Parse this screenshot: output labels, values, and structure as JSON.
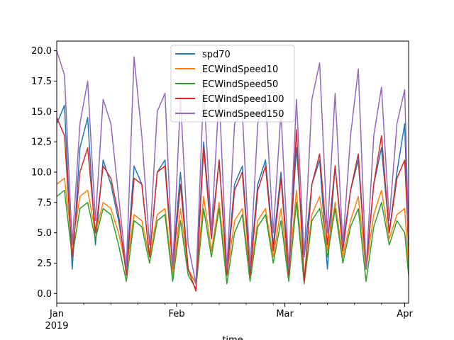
{
  "chart_data": {
    "type": "line",
    "xlabel": "time",
    "x_range": [
      "2019-01-01",
      "2019-04-02"
    ],
    "ylim": [
      -0.8,
      20.8
    ],
    "grid": false,
    "legend_position": "top-center",
    "y_ticks": [
      0.0,
      2.5,
      5.0,
      7.5,
      10.0,
      12.5,
      15.0,
      17.5,
      20.0
    ],
    "y_tick_labels": [
      "0.0",
      "2.5",
      "5.0",
      "7.5",
      "10.0",
      "12.5",
      "15.0",
      "17.5",
      "20.0"
    ],
    "x_ticks": [
      {
        "date": "2019-01-01",
        "label": "Jan",
        "sublabel": "2019"
      },
      {
        "date": "2019-02-01",
        "label": "Feb",
        "sublabel": ""
      },
      {
        "date": "2019-03-01",
        "label": "Mar",
        "sublabel": ""
      },
      {
        "date": "2019-04-01",
        "label": "Apr",
        "sublabel": ""
      }
    ],
    "x": [
      "2019-01-01",
      "2019-01-03",
      "2019-01-05",
      "2019-01-07",
      "2019-01-09",
      "2019-01-11",
      "2019-01-13",
      "2019-01-15",
      "2019-01-17",
      "2019-01-19",
      "2019-01-21",
      "2019-01-23",
      "2019-01-25",
      "2019-01-27",
      "2019-01-29",
      "2019-01-31",
      "2019-02-02",
      "2019-02-04",
      "2019-02-06",
      "2019-02-08",
      "2019-02-10",
      "2019-02-12",
      "2019-02-14",
      "2019-02-16",
      "2019-02-18",
      "2019-02-20",
      "2019-02-22",
      "2019-02-24",
      "2019-02-26",
      "2019-02-28",
      "2019-03-02",
      "2019-03-04",
      "2019-03-06",
      "2019-03-08",
      "2019-03-10",
      "2019-03-12",
      "2019-03-14",
      "2019-03-16",
      "2019-03-18",
      "2019-03-20",
      "2019-03-22",
      "2019-03-24",
      "2019-03-26",
      "2019-03-28",
      "2019-03-30",
      "2019-04-01",
      "2019-04-02"
    ],
    "series": [
      {
        "name": "spd70",
        "color": "#1f77b4",
        "values": [
          14.0,
          15.5,
          2.0,
          12.0,
          14.5,
          4.0,
          11.0,
          9.0,
          6.0,
          2.0,
          10.5,
          9.0,
          3.0,
          10.0,
          11.0,
          2.5,
          10.0,
          2.0,
          0.8,
          12.5,
          5.0,
          11.0,
          2.0,
          9.0,
          10.5,
          2.0,
          9.0,
          11.0,
          4.0,
          10.0,
          2.0,
          12.0,
          3.0,
          9.0,
          11.0,
          2.0,
          10.5,
          4.0,
          8.5,
          11.0,
          2.0,
          9.0,
          12.0,
          5.0,
          10.0,
          14.0,
          3.0
        ]
      },
      {
        "name": "ECWindSpeed10",
        "color": "#ff7f0e",
        "values": [
          9.0,
          9.5,
          4.0,
          8.0,
          8.5,
          5.0,
          7.5,
          7.0,
          5.0,
          2.0,
          6.5,
          6.0,
          3.0,
          6.5,
          7.0,
          1.5,
          7.0,
          2.0,
          0.8,
          8.0,
          3.5,
          7.5,
          1.5,
          6.0,
          7.0,
          1.5,
          6.0,
          7.0,
          3.0,
          7.0,
          1.5,
          8.5,
          1.0,
          6.5,
          8.0,
          3.5,
          7.5,
          3.0,
          6.0,
          8.0,
          2.0,
          6.5,
          8.5,
          4.5,
          6.5,
          7.0,
          2.0
        ]
      },
      {
        "name": "ECWindSpeed50",
        "color": "#2ca02c",
        "values": [
          8.0,
          8.5,
          3.0,
          7.0,
          7.5,
          4.5,
          7.0,
          6.5,
          4.0,
          1.0,
          6.0,
          5.5,
          2.5,
          6.0,
          6.5,
          1.0,
          6.0,
          1.5,
          0.4,
          7.0,
          3.0,
          7.0,
          0.8,
          5.0,
          6.5,
          1.0,
          5.5,
          6.5,
          2.5,
          6.0,
          1.0,
          7.5,
          0.8,
          6.0,
          7.0,
          3.0,
          7.0,
          2.5,
          5.5,
          7.0,
          1.0,
          5.5,
          7.5,
          4.0,
          6.0,
          5.0,
          1.5
        ]
      },
      {
        "name": "ECWindSpeed100",
        "color": "#d62728",
        "values": [
          14.5,
          13.0,
          3.0,
          10.0,
          12.0,
          5.0,
          10.5,
          9.5,
          6.5,
          1.5,
          9.5,
          9.0,
          3.0,
          10.0,
          10.5,
          2.0,
          9.0,
          2.0,
          0.2,
          12.0,
          4.5,
          11.0,
          1.5,
          8.5,
          10.0,
          1.5,
          8.5,
          10.5,
          3.5,
          9.5,
          1.5,
          13.5,
          1.0,
          9.0,
          11.5,
          4.0,
          10.5,
          3.5,
          8.5,
          11.5,
          2.0,
          9.0,
          13.0,
          5.0,
          9.5,
          11.0,
          4.0
        ]
      },
      {
        "name": "ECWindSpeed150",
        "color": "#9467bd",
        "values": [
          20.0,
          18.0,
          4.0,
          14.0,
          17.5,
          6.0,
          16.0,
          14.0,
          8.0,
          2.0,
          19.5,
          13.0,
          4.0,
          15.0,
          16.5,
          2.0,
          16.0,
          4.0,
          0.8,
          17.0,
          5.0,
          16.5,
          2.0,
          14.0,
          15.0,
          2.0,
          14.0,
          16.0,
          5.0,
          15.0,
          2.0,
          16.0,
          3.0,
          16.0,
          19.0,
          5.0,
          16.5,
          4.0,
          13.0,
          18.5,
          2.0,
          13.0,
          17.0,
          6.0,
          14.0,
          16.8,
          4.5
        ]
      }
    ]
  }
}
